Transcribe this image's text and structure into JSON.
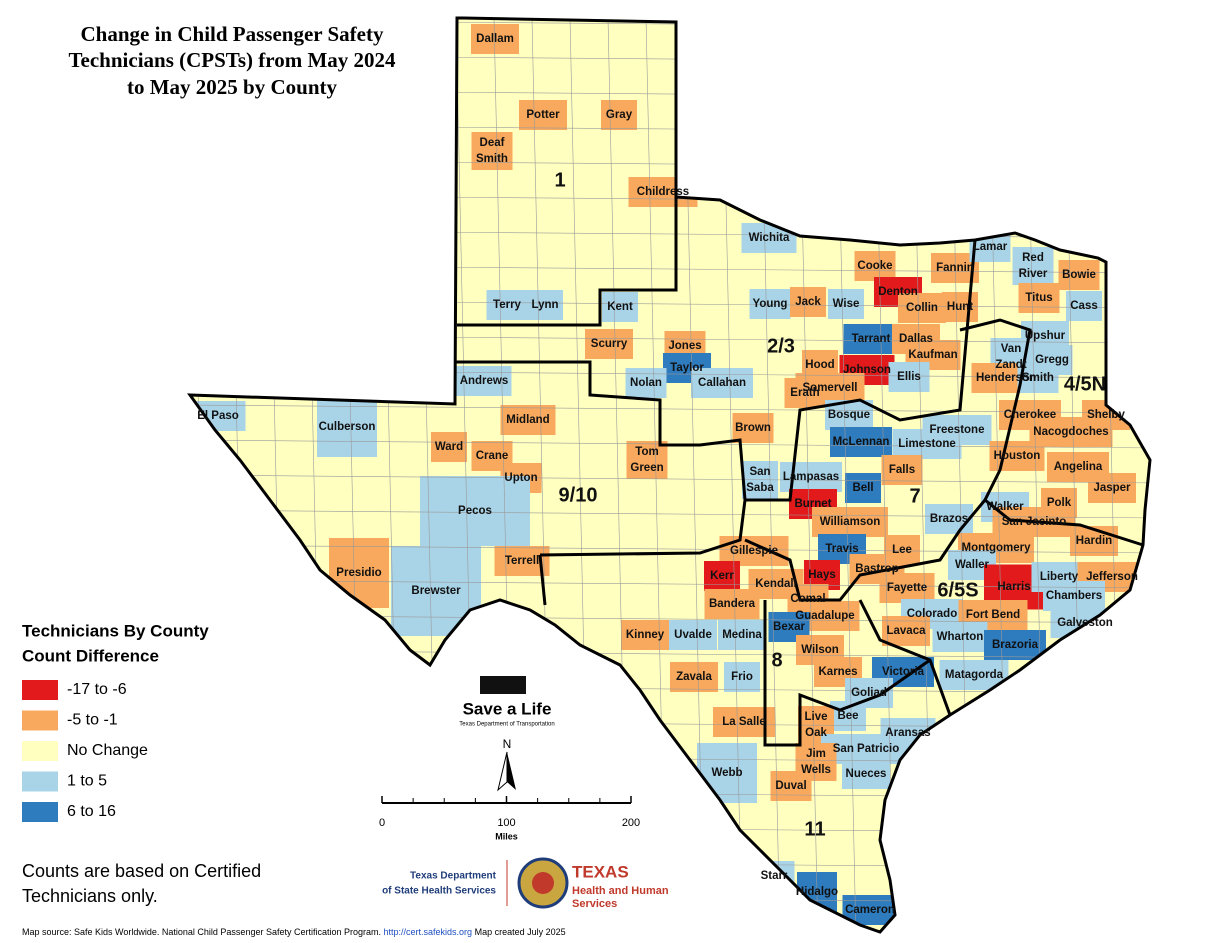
{
  "title": [
    "Change in Child Passenger Safety",
    "Technicians (CPSTs) from May 2024",
    "to May 2025 by County"
  ],
  "legend": {
    "title": [
      "Technicians By County",
      "Count Difference"
    ],
    "items": [
      {
        "label": "-17 to -6",
        "color": "#e31a1c"
      },
      {
        "label": "-5 to -1",
        "color": "#f8a95d"
      },
      {
        "label": "No Change",
        "color": "#ffffc0"
      },
      {
        "label": "1 to 5",
        "color": "#a9d4e8"
      },
      {
        "label": "6 to 16",
        "color": "#2e7bbd"
      }
    ]
  },
  "note": [
    "Counts are based on Certified",
    "Technicians only."
  ],
  "source": {
    "text": "Map source: Safe Kids Worldwide. National Child Passenger Safety Certification Program.",
    "url": "http://cert.safekids.org",
    "date": "Map created July 2025"
  },
  "scale": {
    "ticks": [
      0,
      100,
      200
    ],
    "unit": "Miles"
  },
  "north": "N",
  "logos": {
    "txdot": "Save a Life",
    "txdot_sub": "Texas Department of Transportation",
    "dshs": [
      "Texas Department",
      "of State Health Services"
    ],
    "hhs": [
      "TEXAS",
      "Health and Human",
      "Services"
    ]
  },
  "regions": [
    "1",
    "2/3",
    "4/5N",
    "9/10",
    "7",
    "6/5S",
    "8",
    "11"
  ],
  "counties": [
    {
      "lines": [
        "Dallam"
      ],
      "color": "#f8a95d"
    },
    {
      "lines": [
        "Potter"
      ],
      "color": "#f8a95d"
    },
    {
      "lines": [
        "Gray"
      ],
      "color": "#f8a95d"
    },
    {
      "lines": [
        "Deaf",
        "Smith"
      ],
      "color": "#f8a95d"
    },
    {
      "lines": [
        "Childress"
      ],
      "color": "#f8a95d"
    },
    {
      "lines": [
        "Wichita"
      ],
      "color": "#a9d4e8"
    },
    {
      "lines": [
        "Cooke"
      ],
      "color": "#f8a95d"
    },
    {
      "lines": [
        "Fannin"
      ],
      "color": "#f8a95d"
    },
    {
      "lines": [
        "Lamar"
      ],
      "color": "#a9d4e8"
    },
    {
      "lines": [
        "Red",
        "River"
      ],
      "color": "#a9d4e8"
    },
    {
      "lines": [
        "Bowie"
      ],
      "color": "#f8a95d"
    },
    {
      "lines": [
        "Terry"
      ],
      "color": "#a9d4e8"
    },
    {
      "lines": [
        "Lynn"
      ],
      "color": "#a9d4e8"
    },
    {
      "lines": [
        "Kent"
      ],
      "color": "#a9d4e8"
    },
    {
      "lines": [
        "Young"
      ],
      "color": "#a9d4e8"
    },
    {
      "lines": [
        "Jack"
      ],
      "color": "#f8a95d"
    },
    {
      "lines": [
        "Wise"
      ],
      "color": "#a9d4e8"
    },
    {
      "lines": [
        "Denton"
      ],
      "color": "#e31a1c"
    },
    {
      "lines": [
        "Collin"
      ],
      "color": "#f8a95d"
    },
    {
      "lines": [
        "Hunt"
      ],
      "color": "#f8a95d"
    },
    {
      "lines": [
        "Titus"
      ],
      "color": "#f8a95d"
    },
    {
      "lines": [
        "Cass"
      ],
      "color": "#a9d4e8"
    },
    {
      "lines": [
        "Upshur"
      ],
      "color": "#a9d4e8"
    },
    {
      "lines": [
        "Tarrant"
      ],
      "color": "#2e7bbd"
    },
    {
      "lines": [
        "Dallas"
      ],
      "color": "#f8a95d"
    },
    {
      "lines": [
        "Scurry"
      ],
      "color": "#f8a95d"
    },
    {
      "lines": [
        "Jones"
      ],
      "color": "#f8a95d"
    },
    {
      "lines": [
        "Kaufman"
      ],
      "color": "#f8a95d"
    },
    {
      "lines": [
        "Van",
        "Zandt"
      ],
      "color": "#a9d4e8"
    },
    {
      "lines": [
        "Gregg"
      ],
      "color": "#a9d4e8"
    },
    {
      "lines": [
        "Hood"
      ],
      "color": "#f8a95d"
    },
    {
      "lines": [
        "Johnson"
      ],
      "color": "#e31a1c"
    },
    {
      "lines": [
        "Taylor"
      ],
      "color": "#2e7bbd"
    },
    {
      "lines": [
        "Nolan"
      ],
      "color": "#a9d4e8"
    },
    {
      "lines": [
        "Callahan"
      ],
      "color": "#a9d4e8"
    },
    {
      "lines": [
        "Andrews"
      ],
      "color": "#a9d4e8"
    },
    {
      "lines": [
        "Ellis"
      ],
      "color": "#a9d4e8"
    },
    {
      "lines": [
        "Henderson"
      ],
      "color": "#f8a95d"
    },
    {
      "lines": [
        "Smith"
      ],
      "color": "#a9d4e8"
    },
    {
      "lines": [
        "Somervell"
      ],
      "color": "#f8a95d"
    },
    {
      "lines": [
        "Erath"
      ],
      "color": "#f8a95d"
    },
    {
      "lines": [
        "El Paso"
      ],
      "color": "#a9d4e8"
    },
    {
      "lines": [
        "Bosque"
      ],
      "color": "#a9d4e8"
    },
    {
      "lines": [
        "Cherokee"
      ],
      "color": "#f8a95d"
    },
    {
      "lines": [
        "Shelby"
      ],
      "color": "#f8a95d"
    },
    {
      "lines": [
        "Midland"
      ],
      "color": "#f8a95d"
    },
    {
      "lines": [
        "Culberson"
      ],
      "color": "#a9d4e8"
    },
    {
      "lines": [
        "Brown"
      ],
      "color": "#f8a95d"
    },
    {
      "lines": [
        "McLennan"
      ],
      "color": "#2e7bbd"
    },
    {
      "lines": [
        "Freestone"
      ],
      "color": "#a9d4e8"
    },
    {
      "lines": [
        "Nacogdoches"
      ],
      "color": "#f8a95d"
    },
    {
      "lines": [
        "Limestone"
      ],
      "color": "#a9d4e8"
    },
    {
      "lines": [
        "Ward"
      ],
      "color": "#f8a95d"
    },
    {
      "lines": [
        "Crane"
      ],
      "color": "#f8a95d"
    },
    {
      "lines": [
        "Tom",
        "Green"
      ],
      "color": "#f8a95d"
    },
    {
      "lines": [
        "San",
        "Saba"
      ],
      "color": "#a9d4e8"
    },
    {
      "lines": [
        "Lampasas"
      ],
      "color": "#a9d4e8"
    },
    {
      "lines": [
        "Houston"
      ],
      "color": "#f8a95d"
    },
    {
      "lines": [
        "Angelina"
      ],
      "color": "#f8a95d"
    },
    {
      "lines": [
        "Falls"
      ],
      "color": "#f8a95d"
    },
    {
      "lines": [
        "Upton"
      ],
      "color": "#f8a95d"
    },
    {
      "lines": [
        "Bell"
      ],
      "color": "#2e7bbd"
    },
    {
      "lines": [
        "Jasper"
      ],
      "color": "#f8a95d"
    },
    {
      "lines": [
        "Burnet"
      ],
      "color": "#e31a1c"
    },
    {
      "lines": [
        "Polk"
      ],
      "color": "#f8a95d"
    },
    {
      "lines": [
        "Walker"
      ],
      "color": "#a9d4e8"
    },
    {
      "lines": [
        "Pecos"
      ],
      "color": "#a9d4e8"
    },
    {
      "lines": [
        "Brazos"
      ],
      "color": "#a9d4e8"
    },
    {
      "lines": [
        "Williamson"
      ],
      "color": "#f8a95d"
    },
    {
      "lines": [
        "San Jacinto"
      ],
      "color": "#f8a95d"
    },
    {
      "lines": [
        "Hardin"
      ],
      "color": "#f8a95d"
    },
    {
      "lines": [
        "Travis"
      ],
      "color": "#2e7bbd"
    },
    {
      "lines": [
        "Gillespie"
      ],
      "color": "#f8a95d"
    },
    {
      "lines": [
        "Lee"
      ],
      "color": "#f8a95d"
    },
    {
      "lines": [
        "Montgomery"
      ],
      "color": "#f8a95d"
    },
    {
      "lines": [
        "Terrell"
      ],
      "color": "#f8a95d"
    },
    {
      "lines": [
        "Waller"
      ],
      "color": "#a9d4e8"
    },
    {
      "lines": [
        "Bastrop"
      ],
      "color": "#f8a95d"
    },
    {
      "lines": [
        "Kerr"
      ],
      "color": "#e31a1c"
    },
    {
      "lines": [
        "Hays"
      ],
      "color": "#e31a1c"
    },
    {
      "lines": [
        "Presidio"
      ],
      "color": "#f8a95d"
    },
    {
      "lines": [
        "Harris"
      ],
      "color": "#e31a1c"
    },
    {
      "lines": [
        "Liberty"
      ],
      "color": "#a9d4e8"
    },
    {
      "lines": [
        "Jefferson"
      ],
      "color": "#f8a95d"
    },
    {
      "lines": [
        "Kendall"
      ],
      "color": "#f8a95d"
    },
    {
      "lines": [
        "Fayette"
      ],
      "color": "#f8a95d"
    },
    {
      "lines": [
        "Brewster"
      ],
      "color": "#a9d4e8"
    },
    {
      "lines": [
        "Comal"
      ],
      "color": "#f8a95d"
    },
    {
      "lines": [
        "Chambers"
      ],
      "color": "#a9d4e8"
    },
    {
      "lines": [
        "Bandera"
      ],
      "color": "#f8a95d"
    },
    {
      "lines": [
        "Guadalupe"
      ],
      "color": "#f8a95d"
    },
    {
      "lines": [
        "Colorado"
      ],
      "color": "#a9d4e8"
    },
    {
      "lines": [
        "Fort Bend"
      ],
      "color": "#f8a95d"
    },
    {
      "lines": [
        "Galveston"
      ],
      "color": "#a9d4e8"
    },
    {
      "lines": [
        "Bexar"
      ],
      "color": "#2e7bbd"
    },
    {
      "lines": [
        "Lavaca"
      ],
      "color": "#f8a95d"
    },
    {
      "lines": [
        "Kinney"
      ],
      "color": "#f8a95d"
    },
    {
      "lines": [
        "Uvalde"
      ],
      "color": "#a9d4e8"
    },
    {
      "lines": [
        "Medina"
      ],
      "color": "#a9d4e8"
    },
    {
      "lines": [
        "Wharton"
      ],
      "color": "#a9d4e8"
    },
    {
      "lines": [
        "Brazoria"
      ],
      "color": "#2e7bbd"
    },
    {
      "lines": [
        "Wilson"
      ],
      "color": "#f8a95d"
    },
    {
      "lines": [
        "Zavala"
      ],
      "color": "#f8a95d"
    },
    {
      "lines": [
        "Frio"
      ],
      "color": "#a9d4e8"
    },
    {
      "lines": [
        "Karnes"
      ],
      "color": "#f8a95d"
    },
    {
      "lines": [
        "Victoria"
      ],
      "color": "#2e7bbd"
    },
    {
      "lines": [
        "Matagorda"
      ],
      "color": "#a9d4e8"
    },
    {
      "lines": [
        "Goliad"
      ],
      "color": "#a9d4e8"
    },
    {
      "lines": [
        "Bee"
      ],
      "color": "#a9d4e8"
    },
    {
      "lines": [
        "Live",
        "Oak"
      ],
      "color": "#f8a95d"
    },
    {
      "lines": [
        "La Salle"
      ],
      "color": "#f8a95d"
    },
    {
      "lines": [
        "Aransas"
      ],
      "color": "#a9d4e8"
    },
    {
      "lines": [
        "San Patricio"
      ],
      "color": "#a9d4e8"
    },
    {
      "lines": [
        "Jim",
        "Wells"
      ],
      "color": "#f8a95d"
    },
    {
      "lines": [
        "Nueces"
      ],
      "color": "#a9d4e8"
    },
    {
      "lines": [
        "Webb"
      ],
      "color": "#a9d4e8"
    },
    {
      "lines": [
        "Duval"
      ],
      "color": "#f8a95d"
    },
    {
      "lines": [
        "Starr"
      ],
      "color": "#a9d4e8"
    },
    {
      "lines": [
        "Hidalgo"
      ],
      "color": "#2e7bbd"
    },
    {
      "lines": [
        "Cameron"
      ],
      "color": "#2e7bbd"
    }
  ]
}
